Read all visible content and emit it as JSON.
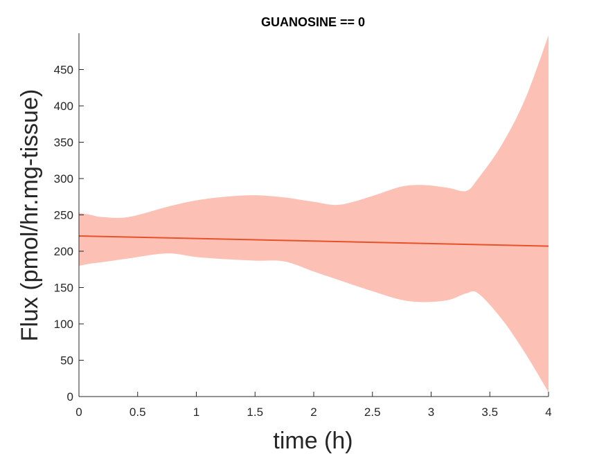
{
  "chart_data": {
    "type": "area",
    "title": "GUANOSINE == 0",
    "xlabel": "time (h)",
    "ylabel": "Flux (pmol/hr.mg-tissue)",
    "xlim": [
      0,
      4
    ],
    "ylim": [
      0,
      500
    ],
    "xticks": [
      0,
      0.5,
      1,
      1.5,
      2,
      2.5,
      3,
      3.5,
      4
    ],
    "xtick_labels": [
      "0",
      "0.5",
      "1",
      "1.5",
      "2",
      "2.5",
      "3",
      "3.5",
      "4"
    ],
    "yticks": [
      0,
      50,
      100,
      150,
      200,
      250,
      300,
      350,
      400,
      450
    ],
    "ytick_labels": [
      "0",
      "50",
      "100",
      "150",
      "200",
      "250",
      "300",
      "350",
      "400",
      "450"
    ],
    "grid": false,
    "legend": "none",
    "colors": {
      "line": "#e8502a",
      "band": "#fdc0b4",
      "axis": "#262626"
    },
    "series": [
      {
        "kind": "line",
        "x": [
          0,
          4
        ],
        "values": [
          221,
          207
        ]
      },
      {
        "kind": "band",
        "x": [
          0,
          0.1,
          0.2,
          0.42,
          0.75,
          1.0,
          1.25,
          1.5,
          1.75,
          2.0,
          2.22,
          2.5,
          2.75,
          2.95,
          3.15,
          3.3,
          3.4,
          3.6,
          3.8,
          4.0
        ],
        "upper": [
          253,
          250,
          247,
          247,
          261,
          270,
          275,
          277,
          274,
          268,
          264,
          276,
          289,
          291,
          287,
          283,
          300,
          346,
          409,
          497
        ],
        "lower": [
          180,
          183,
          185,
          190,
          197,
          192,
          189,
          187,
          186,
          172,
          160,
          145,
          133,
          130,
          133,
          142,
          142,
          107,
          60,
          6
        ]
      }
    ]
  }
}
